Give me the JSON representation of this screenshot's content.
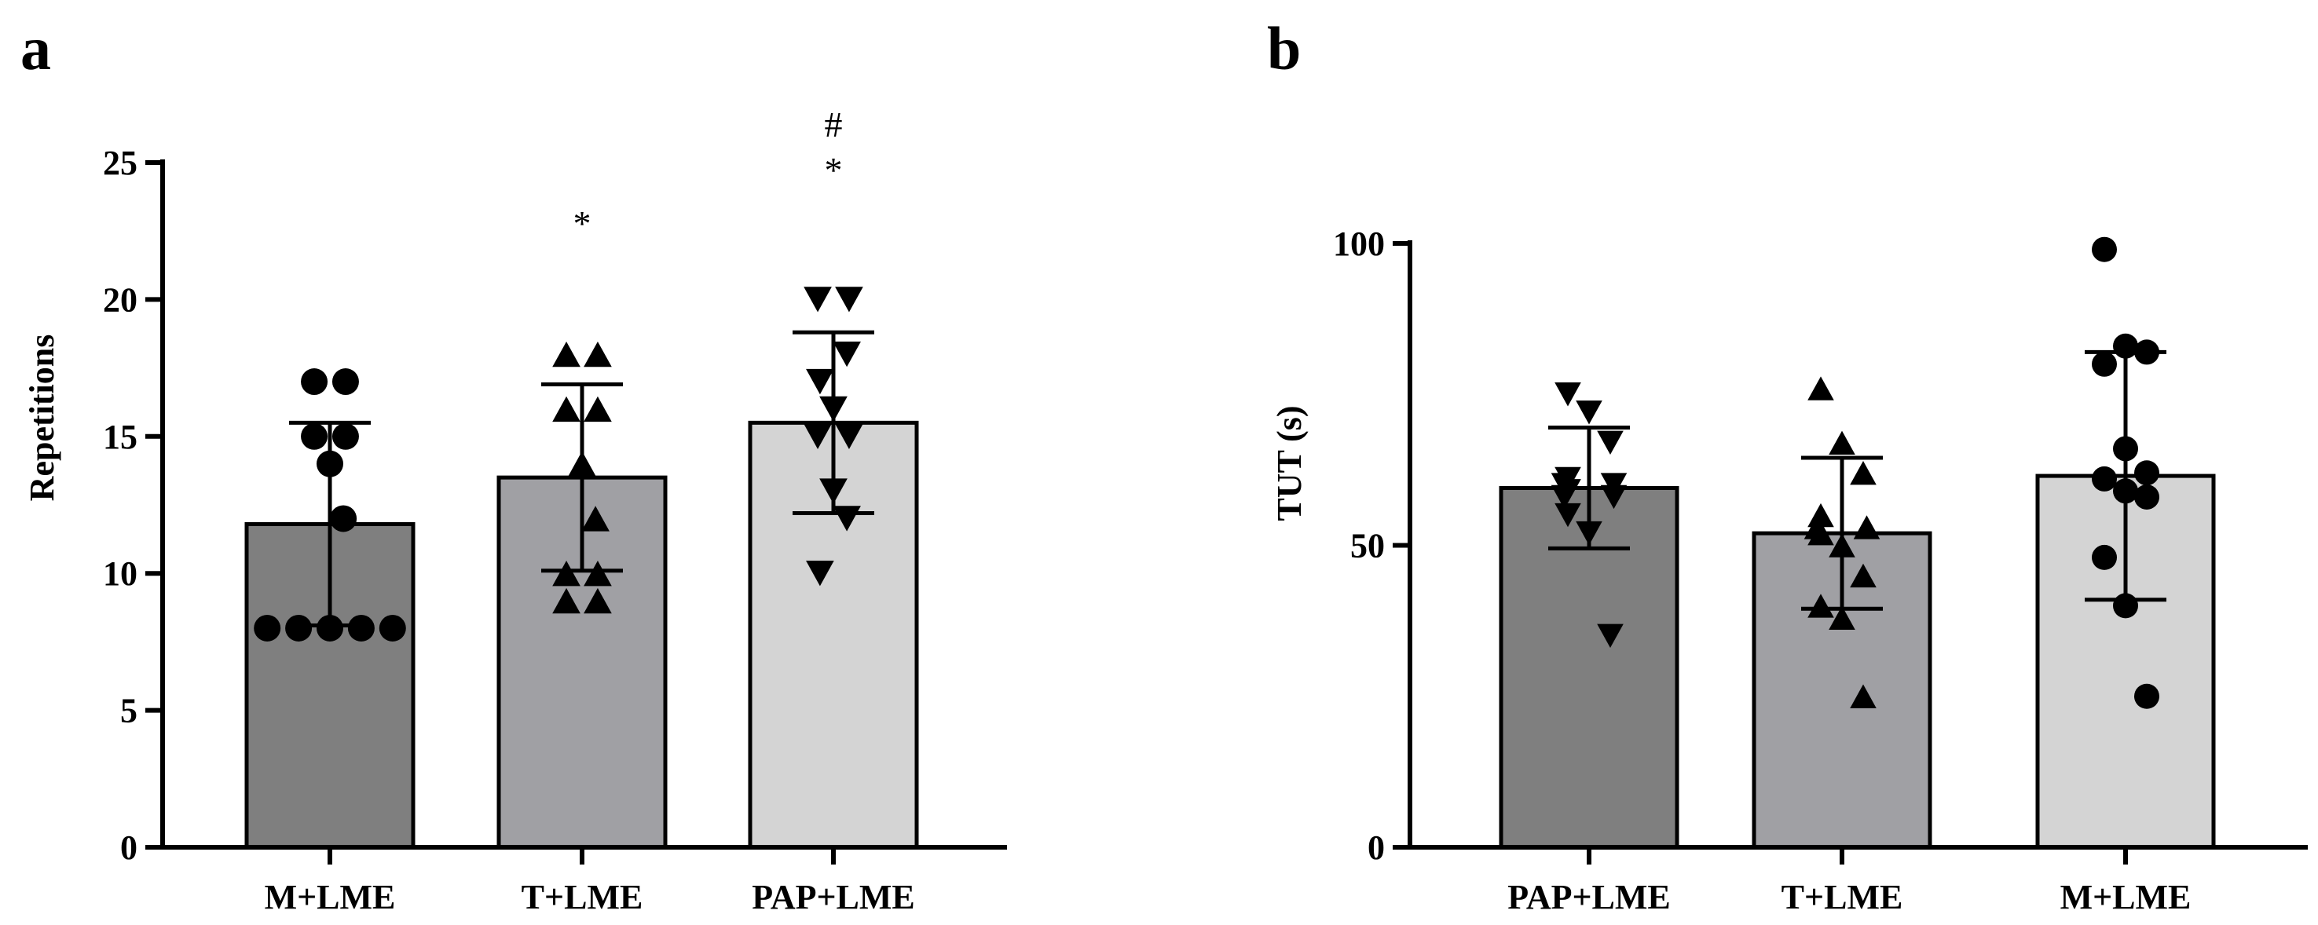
{
  "chart_data": [
    {
      "panel": "a",
      "type": "bar",
      "ylabel": "Repetitions",
      "xlabel": "",
      "ylim": [
        0,
        25
      ],
      "yticks": [
        0,
        5,
        10,
        15,
        20,
        25
      ],
      "categories": [
        "M+LME",
        "T+LME",
        "PAP+LME"
      ],
      "values": [
        11.8,
        13.5,
        15.5
      ],
      "sd": [
        3.7,
        3.4,
        3.3
      ],
      "colors": [
        "#7f7f7f",
        "#a0a0a4",
        "#d4d4d4"
      ],
      "markers": [
        "circle",
        "triangle-up",
        "triangle-down"
      ],
      "significance": [
        "",
        "*",
        "#\n*"
      ],
      "points": [
        [
          17,
          17,
          15,
          15,
          14,
          12,
          8,
          8,
          8,
          8,
          8
        ],
        [
          18,
          18,
          16,
          16,
          14,
          12,
          10,
          10,
          9,
          9
        ],
        [
          20,
          20,
          18,
          17,
          16,
          15,
          15,
          13,
          12,
          10
        ]
      ]
    },
    {
      "panel": "b",
      "type": "bar",
      "ylabel": "TUT  (s)",
      "xlabel": "",
      "ylim": [
        0,
        100
      ],
      "yticks": [
        0,
        50,
        100
      ],
      "categories": [
        "PAP+LME",
        "T+LME",
        "M+LME"
      ],
      "values": [
        59.5,
        52,
        61.5
      ],
      "sd": [
        10,
        12.5,
        20.5
      ],
      "colors": [
        "#7f7f7f",
        "#a0a0a4",
        "#d4d4d4"
      ],
      "markers": [
        "triangle-down",
        "triangle-up",
        "circle"
      ],
      "significance": [
        "",
        "",
        ""
      ],
      "points": [
        [
          75,
          72,
          67,
          61,
          60,
          60,
          59,
          58,
          58,
          55,
          52,
          35
        ],
        [
          76,
          67,
          62,
          55,
          53,
          53,
          52,
          50,
          45,
          40,
          38,
          25
        ],
        [
          99,
          83,
          82,
          80,
          66,
          62,
          61,
          59,
          58,
          48,
          40,
          25
        ]
      ]
    }
  ]
}
